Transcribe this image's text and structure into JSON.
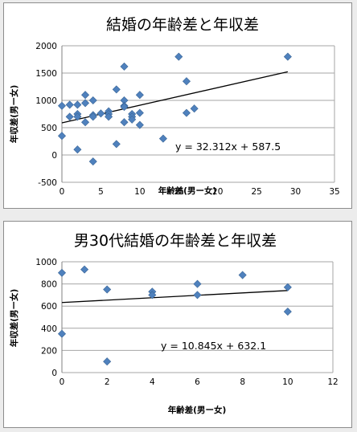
{
  "chart_data": [
    {
      "type": "scatter",
      "title": "結婚の年齢差と年収差",
      "xlabel": "年齢差(男ー女)",
      "ylabel": "年収差(男ー女)",
      "xlim": [
        0,
        35
      ],
      "ylim": [
        -500,
        2000
      ],
      "xticks": [
        "0",
        "5",
        "10",
        "15",
        "20",
        "25",
        "30",
        "35"
      ],
      "yticks": [
        "2000",
        "1500",
        "1000",
        "500",
        "0",
        "-500"
      ],
      "gridlines": true,
      "marker_color": "#4f81bd",
      "trend_color": "#000000",
      "trendline": {
        "slope": 32.312,
        "intercept": 587.5
      },
      "equation": "y = 32.312x + 587.5",
      "points": [
        [
          0,
          350
        ],
        [
          0,
          900
        ],
        [
          1,
          920
        ],
        [
          1,
          700
        ],
        [
          2,
          920
        ],
        [
          2,
          750
        ],
        [
          2,
          700
        ],
        [
          2,
          100
        ],
        [
          3,
          1100
        ],
        [
          3,
          950
        ],
        [
          3,
          600
        ],
        [
          4,
          1000
        ],
        [
          4,
          730
        ],
        [
          4,
          700
        ],
        [
          4,
          -120
        ],
        [
          5,
          760
        ],
        [
          6,
          800
        ],
        [
          6,
          750
        ],
        [
          6,
          700
        ],
        [
          7,
          1200
        ],
        [
          7,
          200
        ],
        [
          8,
          1620
        ],
        [
          8,
          1000
        ],
        [
          8,
          900
        ],
        [
          8,
          880
        ],
        [
          8,
          600
        ],
        [
          9,
          750
        ],
        [
          9,
          700
        ],
        [
          9,
          650
        ],
        [
          10,
          1100
        ],
        [
          10,
          770
        ],
        [
          10,
          550
        ],
        [
          13,
          300
        ],
        [
          15,
          1800
        ],
        [
          16,
          1350
        ],
        [
          16,
          770
        ],
        [
          17,
          850
        ],
        [
          29,
          1800
        ]
      ]
    },
    {
      "type": "scatter",
      "title": "男30代結婚の年齢差と年収差",
      "xlabel": "年齢差(男ー女)",
      "ylabel": "年収差(男ー女)",
      "xlim": [
        0,
        12
      ],
      "ylim": [
        0,
        1000
      ],
      "xticks": [
        "0",
        "2",
        "4",
        "6",
        "8",
        "10",
        "12"
      ],
      "yticks": [
        "1000",
        "800",
        "600",
        "400",
        "200",
        "0"
      ],
      "gridlines": true,
      "marker_color": "#4f81bd",
      "trend_color": "#000000",
      "trendline": {
        "slope": 10.845,
        "intercept": 632.1
      },
      "equation": "y = 10.845x + 632.1",
      "points": [
        [
          0,
          900
        ],
        [
          0,
          350
        ],
        [
          1,
          930
        ],
        [
          2,
          750
        ],
        [
          2,
          100
        ],
        [
          4,
          730
        ],
        [
          4,
          700
        ],
        [
          6,
          800
        ],
        [
          6,
          700
        ],
        [
          8,
          880
        ],
        [
          10,
          770
        ],
        [
          10,
          550
        ]
      ]
    }
  ]
}
